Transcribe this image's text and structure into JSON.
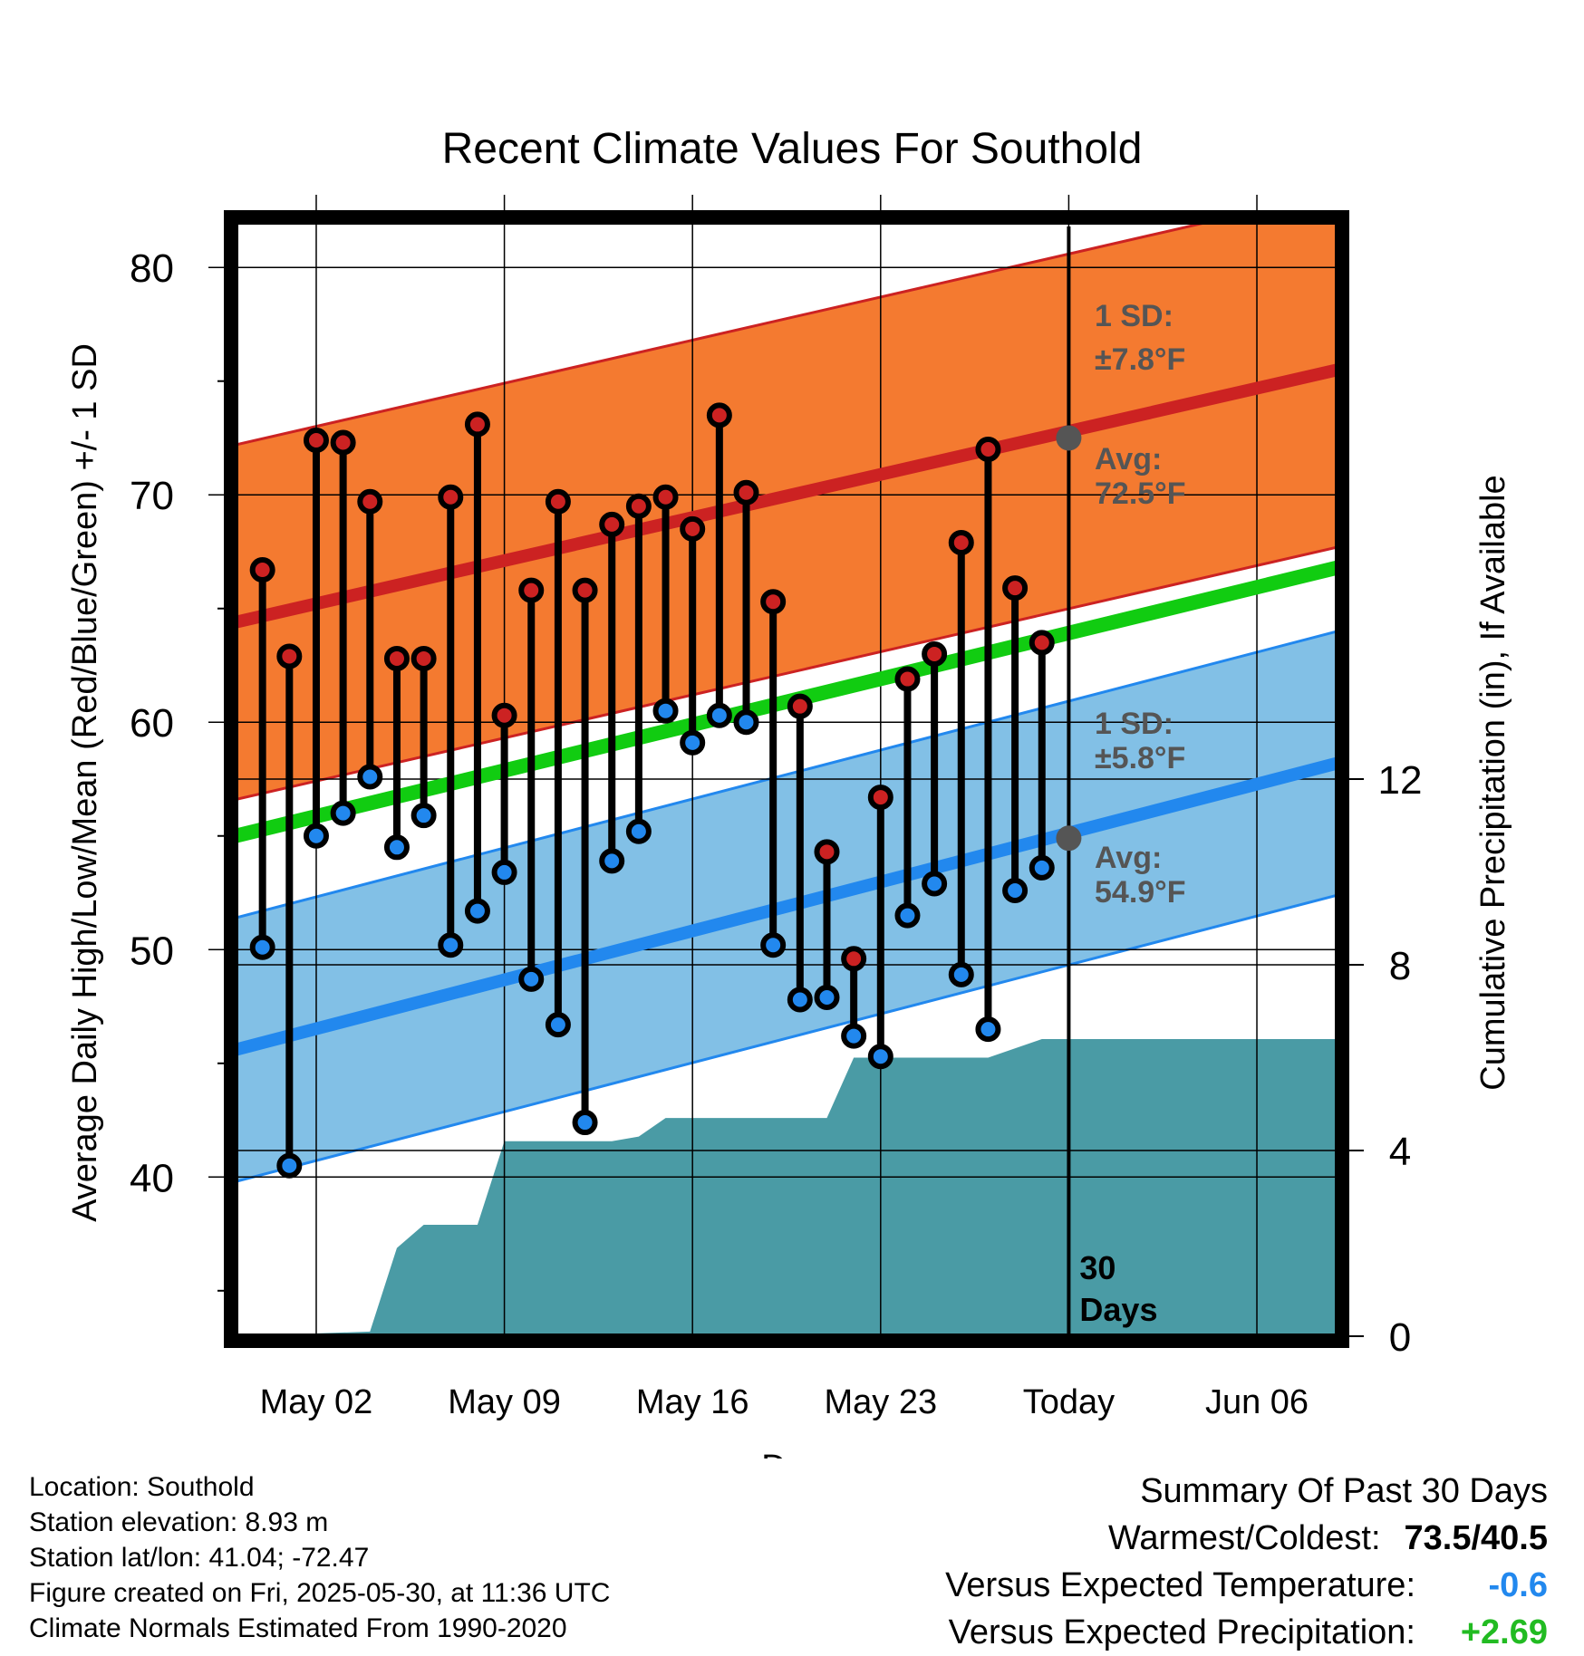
{
  "chart_data": {
    "type": "line",
    "title": "Recent Climate Values For Southold",
    "xlabel": "Day",
    "ylabel": "Average Daily High/Low/Mean (Red/Blue/Green) +/- 1 SD",
    "y2label": "Cumulative Precipitation (in), If Available",
    "x_tick_labels": [
      "May 02",
      "May 09",
      "May 16",
      "May 23",
      "Today",
      "Jun 06"
    ],
    "x_tick_dates": [
      "2025-05-02",
      "2025-05-09",
      "2025-05-16",
      "2025-05-23",
      "2025-05-30",
      "2025-06-06"
    ],
    "xlim": [
      "2025-04-29",
      "2025-06-09"
    ],
    "ylim": [
      33,
      82
    ],
    "y_ticks": [
      40,
      50,
      60,
      70,
      80
    ],
    "y2lim": [
      0,
      24
    ],
    "y2_ticks": [
      0,
      4,
      8,
      12
    ],
    "grid": true,
    "today_marker": "2025-05-30",
    "today_label": "30\nDays",
    "dates": [
      "2025-04-30",
      "2025-05-01",
      "2025-05-02",
      "2025-05-03",
      "2025-05-04",
      "2025-05-05",
      "2025-05-06",
      "2025-05-07",
      "2025-05-08",
      "2025-05-09",
      "2025-05-10",
      "2025-05-11",
      "2025-05-12",
      "2025-05-13",
      "2025-05-14",
      "2025-05-15",
      "2025-05-16",
      "2025-05-17",
      "2025-05-18",
      "2025-05-19",
      "2025-05-20",
      "2025-05-21",
      "2025-05-22",
      "2025-05-23",
      "2025-05-24",
      "2025-05-25",
      "2025-05-26",
      "2025-05-27",
      "2025-05-28",
      "2025-05-29"
    ],
    "series": [
      {
        "name": "High",
        "color": "#cc2222",
        "values": [
          66.7,
          62.9,
          72.4,
          72.3,
          69.7,
          62.8,
          62.8,
          69.9,
          73.1,
          60.3,
          65.8,
          69.7,
          65.8,
          68.7,
          69.5,
          69.9,
          68.5,
          73.5,
          70.1,
          65.3,
          60.7,
          54.3,
          49.6,
          56.7,
          61.9,
          63.0,
          67.9,
          72.0,
          65.9,
          63.5
        ]
      },
      {
        "name": "Low",
        "color": "#2288ee",
        "values": [
          50.1,
          40.5,
          55.0,
          56.0,
          57.6,
          54.5,
          55.9,
          50.2,
          51.7,
          53.4,
          48.7,
          46.7,
          42.4,
          53.9,
          55.2,
          60.5,
          59.1,
          60.3,
          60.0,
          50.2,
          47.8,
          47.9,
          46.2,
          45.3,
          51.5,
          52.9,
          48.9,
          46.5,
          52.6,
          53.6
        ]
      }
    ],
    "normal_high": {
      "color": "#cc2222",
      "start": 64.4,
      "end": 75.5,
      "sd": 7.8
    },
    "normal_low": {
      "color": "#2288ee",
      "start": 45.6,
      "end": 58.2,
      "sd": 5.8
    },
    "normal_mean": {
      "color": "#11cc11",
      "start": 55.0,
      "end": 66.8
    },
    "precip_cumulative": {
      "color": "#4a9ba5",
      "points": [
        [
          "2025-04-29",
          0
        ],
        [
          "2025-05-04",
          0.1
        ],
        [
          "2025-05-05",
          1.9
        ],
        [
          "2025-05-06",
          2.4
        ],
        [
          "2025-05-08",
          2.4
        ],
        [
          "2025-05-09",
          4.2
        ],
        [
          "2025-05-13",
          4.2
        ],
        [
          "2025-05-14",
          4.3
        ],
        [
          "2025-05-15",
          4.7
        ],
        [
          "2025-05-20",
          4.7
        ],
        [
          "2025-05-21",
          4.7
        ],
        [
          "2025-05-22",
          6.0
        ],
        [
          "2025-05-23",
          6.0
        ],
        [
          "2025-05-27",
          6.0
        ],
        [
          "2025-05-28",
          6.2
        ],
        [
          "2025-05-29",
          6.4
        ],
        [
          "2025-06-09",
          6.4
        ]
      ]
    },
    "annotations": [
      {
        "line1": "1 SD:",
        "line2": "±7.8°F"
      },
      {
        "line1": "Avg:",
        "line2": "72.5°F"
      },
      {
        "line1": "1 SD:",
        "line2": "±5.8°F"
      },
      {
        "line1": "Avg:",
        "line2": "54.9°F"
      }
    ],
    "today_avg_high": 72.5,
    "today_avg_low": 54.9
  },
  "info": {
    "location": "Location: Southold",
    "elevation": "Station elevation: 8.93 m",
    "latlon": "Station lat/lon: 41.04; -72.47",
    "created": "Figure created on Fri, 2025-05-30, at 11:36 UTC",
    "normals": "Climate Normals Estimated From 1990-2020"
  },
  "summary": {
    "heading": "Summary Of Past 30 Days",
    "warm_cold_label": "Warmest/Coldest:",
    "warm_cold_value": "73.5/40.5",
    "temp_label": "Versus Expected Temperature:",
    "temp_value": "-0.6",
    "temp_color": "#2288ee",
    "precip_label": "Versus Expected Precipitation:",
    "precip_value": "+2.69",
    "precip_color": "#22bb22"
  }
}
